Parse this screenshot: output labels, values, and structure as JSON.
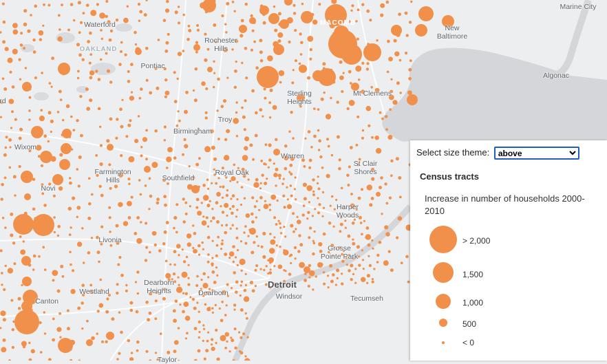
{
  "map": {
    "labels": [
      {
        "text": "Marine City",
        "style": "normal"
      },
      {
        "text": "Waterford",
        "style": "normal"
      },
      {
        "text": "OAKLAND",
        "style": "faint"
      },
      {
        "text": "Rochester\nHills",
        "style": "normal"
      },
      {
        "text": "MACOMB",
        "style": "white"
      },
      {
        "text": "New\nBaltimore",
        "style": "normal"
      },
      {
        "text": "Pontiac",
        "style": "normal"
      },
      {
        "text": "Algonac",
        "style": "normal"
      },
      {
        "text": "Sterling\nHeights",
        "style": "normal"
      },
      {
        "text": "Mt Clemens",
        "style": "normal"
      },
      {
        "text": "Troy",
        "style": "normal"
      },
      {
        "text": "Birmingham",
        "style": "normal"
      },
      {
        "text": "Wixom",
        "style": "normal"
      },
      {
        "text": "Warren",
        "style": "normal"
      },
      {
        "text": "Farmington\nHills",
        "style": "normal"
      },
      {
        "text": "Southfield",
        "style": "normal"
      },
      {
        "text": "Royal Oak",
        "style": "normal"
      },
      {
        "text": "St Clair\nShores",
        "style": "normal"
      },
      {
        "text": "Novi",
        "style": "normal"
      },
      {
        "text": "Harper\nWoods",
        "style": "normal"
      },
      {
        "text": "Livonia",
        "style": "normal"
      },
      {
        "text": "Grosse\nPointe Park",
        "style": "normal"
      },
      {
        "text": "Detroit",
        "style": "big"
      },
      {
        "text": "Windsor",
        "style": "normal"
      },
      {
        "text": "Tecumseh",
        "style": "normal"
      },
      {
        "text": "Canton",
        "style": "normal"
      },
      {
        "text": "Westland",
        "style": "normal"
      },
      {
        "text": "Dearborn\nHeights",
        "style": "normal"
      },
      {
        "text": "Dearborn",
        "style": "normal"
      },
      {
        "text": "Taylor",
        "style": "normal"
      },
      {
        "text": "rd",
        "style": "normal"
      }
    ],
    "symbol_color": "#f0904b",
    "water_color": "#d4d6d9",
    "land_color": "#eceef0"
  },
  "panel": {
    "theme_label": "Select size theme:",
    "theme_selected": "above",
    "layer_title": "Census tracts",
    "field_title": "Increase in number of households 2000-2010",
    "legend": [
      {
        "label": "> 2,000",
        "value": 2000
      },
      {
        "label": "1,500",
        "value": 1500
      },
      {
        "label": "1,000",
        "value": 1000
      },
      {
        "label": "500",
        "value": 500
      },
      {
        "label": "< 0",
        "value": 0
      }
    ]
  }
}
